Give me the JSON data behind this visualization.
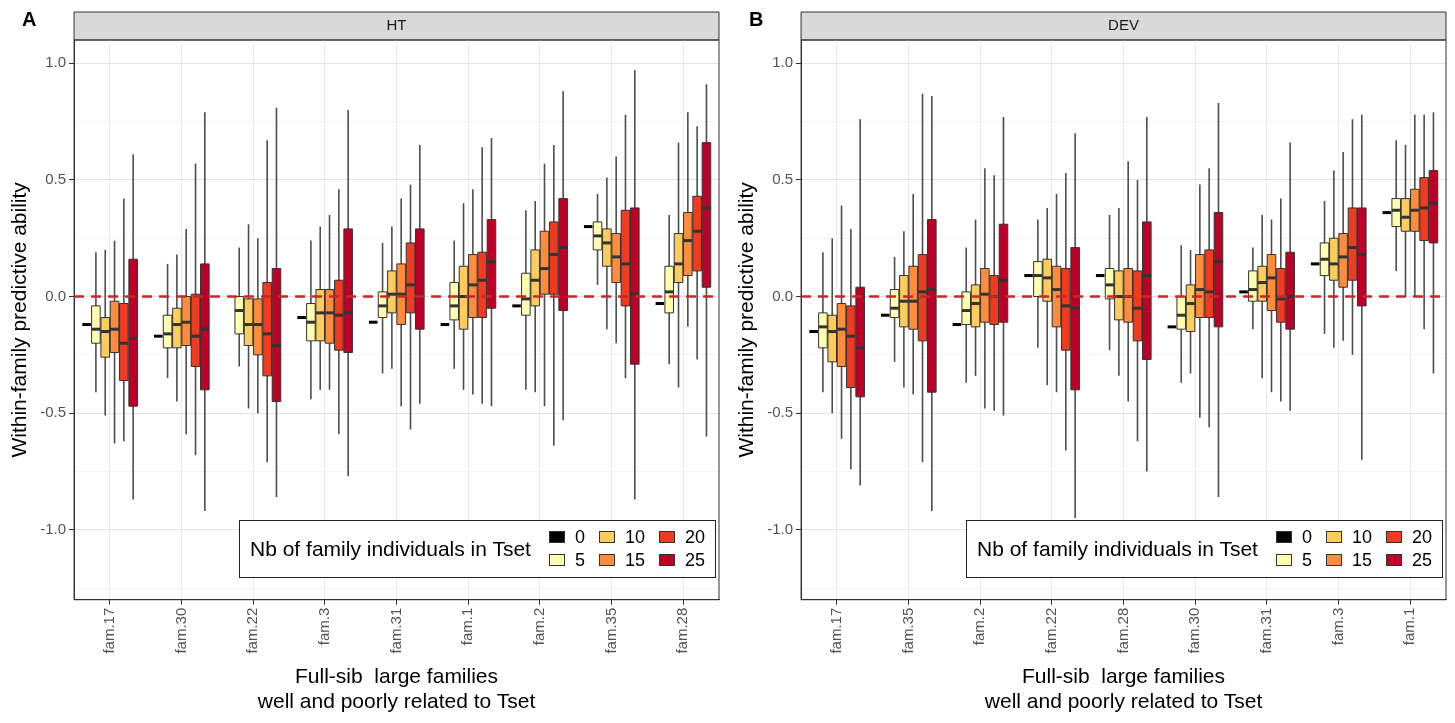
{
  "chart_data": [
    {
      "type": "box",
      "title": "HT",
      "annotations": [
        "A"
      ],
      "xlabel": "Full-sib  large families\nwell and poorly related to Tset",
      "ylabel": "Within-family predictive ability",
      "legend_title": "Nb of family individuals in Tset",
      "legend": "bottom right",
      "grid": true,
      "categories": [
        "fam.17",
        "fam.30",
        "fam.22",
        "fam.3",
        "fam.31",
        "fam.1",
        "fam.2",
        "fam.35",
        "fam.28"
      ],
      "ylim": [
        -1.3,
        1.1
      ],
      "yticks": [
        {
          "value": -1.25,
          "label": null
        },
        {
          "value": -1,
          "label": "-1.0"
        },
        {
          "value": -0.75,
          "label": null
        },
        {
          "value": -0.5,
          "label": "-0.5"
        },
        {
          "value": -0.25,
          "label": null
        },
        {
          "value": 0,
          "label": "0.0"
        },
        {
          "value": 0.25,
          "label": null
        },
        {
          "value": 0.5,
          "label": "0.5"
        },
        {
          "value": 0.75,
          "label": null
        },
        {
          "value": 1,
          "label": "1.0"
        }
      ],
      "ref_lines": [
        {
          "axis": "y",
          "value": 0,
          "color": "#c62828",
          "line_style": "dashed"
        }
      ],
      "series": [
        {
          "name": "0",
          "color": "#000000",
          "boxes": [
            {
              "low": -0.12,
              "q1": -0.12,
              "median": -0.12,
              "q3": -0.12,
              "high": -0.12
            },
            {
              "low": -0.17,
              "q1": -0.17,
              "median": -0.17,
              "q3": -0.17,
              "high": -0.17
            },
            null,
            {
              "low": -0.09,
              "q1": -0.09,
              "median": -0.09,
              "q3": -0.09,
              "high": -0.09
            },
            {
              "low": -0.11,
              "q1": -0.11,
              "median": -0.11,
              "q3": -0.11,
              "high": -0.11
            },
            {
              "low": -0.12,
              "q1": -0.12,
              "median": -0.12,
              "q3": -0.12,
              "high": -0.12
            },
            {
              "low": -0.04,
              "q1": -0.04,
              "median": -0.04,
              "q3": -0.04,
              "high": -0.04
            },
            {
              "low": 0.3,
              "q1": 0.3,
              "median": 0.3,
              "q3": 0.3,
              "high": 0.3
            },
            {
              "low": -0.03,
              "q1": -0.03,
              "median": -0.03,
              "q3": -0.03,
              "high": -0.03
            }
          ]
        },
        {
          "name": "5",
          "color": "#ffffb2",
          "boxes": [
            {
              "low": -0.41,
              "q1": -0.2,
              "median": -0.14,
              "q3": -0.04,
              "high": 0.19
            },
            {
              "low": -0.35,
              "q1": -0.22,
              "median": -0.16,
              "q3": -0.08,
              "high": 0.14
            },
            {
              "low": -0.3,
              "q1": -0.16,
              "median": -0.06,
              "q3": 0,
              "high": 0.21
            },
            {
              "low": -0.44,
              "q1": -0.19,
              "median": -0.11,
              "q3": -0.03,
              "high": 0.24
            },
            {
              "low": -0.33,
              "q1": -0.09,
              "median": -0.04,
              "q3": 0.02,
              "high": 0.23
            },
            {
              "low": -0.31,
              "q1": -0.1,
              "median": -0.04,
              "q3": 0.06,
              "high": 0.24
            },
            {
              "low": -0.4,
              "q1": -0.08,
              "median": -0.01,
              "q3": 0.1,
              "high": 0.37
            },
            {
              "low": 0.05,
              "q1": 0.2,
              "median": 0.26,
              "q3": 0.32,
              "high": 0.44
            },
            {
              "low": -0.29,
              "q1": -0.07,
              "median": 0.02,
              "q3": 0.13,
              "high": 0.35
            }
          ]
        },
        {
          "name": "10",
          "color": "#fecc5c",
          "boxes": [
            {
              "low": -0.51,
              "q1": -0.26,
              "median": -0.15,
              "q3": -0.09,
              "high": 0.2
            },
            {
              "low": -0.45,
              "q1": -0.22,
              "median": -0.12,
              "q3": -0.05,
              "high": 0.18
            },
            {
              "low": -0.48,
              "q1": -0.21,
              "median": -0.12,
              "q3": -0.01,
              "high": 0.31
            },
            {
              "low": -0.4,
              "q1": -0.19,
              "median": -0.07,
              "q3": 0.03,
              "high": 0.3
            },
            {
              "low": -0.31,
              "q1": -0.07,
              "median": 0.01,
              "q3": 0.11,
              "high": 0.3
            },
            {
              "low": -0.4,
              "q1": -0.14,
              "median": 0,
              "q3": 0.13,
              "high": 0.4
            },
            {
              "low": -0.41,
              "q1": -0.04,
              "median": 0.07,
              "q3": 0.2,
              "high": 0.41
            },
            {
              "low": -0.14,
              "q1": 0.13,
              "median": 0.23,
              "q3": 0.29,
              "high": 0.51
            },
            {
              "low": -0.39,
              "q1": 0.06,
              "median": 0.14,
              "q3": 0.27,
              "high": 0.66
            }
          ]
        },
        {
          "name": "15",
          "color": "#fd8d3c",
          "boxes": [
            {
              "low": -0.63,
              "q1": -0.24,
              "median": -0.14,
              "q3": -0.02,
              "high": 0.24
            },
            {
              "low": -0.59,
              "q1": -0.21,
              "median": -0.11,
              "q3": 0,
              "high": 0.29
            },
            {
              "low": -0.5,
              "q1": -0.25,
              "median": -0.12,
              "q3": -0.01,
              "high": 0.25
            },
            {
              "low": -0.4,
              "q1": -0.2,
              "median": -0.07,
              "q3": 0.03,
              "high": 0.35
            },
            {
              "low": -0.47,
              "q1": -0.12,
              "median": 0.01,
              "q3": 0.14,
              "high": 0.42
            },
            {
              "low": -0.42,
              "q1": -0.09,
              "median": 0.05,
              "q3": 0.18,
              "high": 0.46
            },
            {
              "low": -0.47,
              "q1": 0.01,
              "median": 0.12,
              "q3": 0.28,
              "high": 0.57
            },
            {
              "low": -0.2,
              "q1": 0.06,
              "median": 0.17,
              "q3": 0.27,
              "high": 0.6
            },
            {
              "low": -0.13,
              "q1": 0.09,
              "median": 0.24,
              "q3": 0.36,
              "high": 0.79
            }
          ]
        },
        {
          "name": "20",
          "color": "#f03b20",
          "boxes": [
            {
              "low": -0.62,
              "q1": -0.36,
              "median": -0.2,
              "q3": -0.03,
              "high": 0.42
            },
            {
              "low": -0.68,
              "q1": -0.3,
              "median": -0.17,
              "q3": 0.01,
              "high": 0.57
            },
            {
              "low": -0.71,
              "q1": -0.34,
              "median": -0.16,
              "q3": 0.06,
              "high": 0.67
            },
            {
              "low": -0.59,
              "q1": -0.23,
              "median": -0.08,
              "q3": 0.07,
              "high": 0.46
            },
            {
              "low": -0.57,
              "q1": -0.07,
              "median": 0.05,
              "q3": 0.23,
              "high": 0.48
            },
            {
              "low": -0.46,
              "q1": -0.09,
              "median": 0.07,
              "q3": 0.19,
              "high": 0.64
            },
            {
              "low": -0.64,
              "q1": 0.01,
              "median": 0.18,
              "q3": 0.32,
              "high": 0.65
            },
            {
              "low": -0.35,
              "q1": -0.04,
              "median": 0.14,
              "q3": 0.37,
              "high": 0.78
            },
            {
              "low": -0.27,
              "q1": 0.11,
              "median": 0.28,
              "q3": 0.43,
              "high": 0.73
            }
          ]
        },
        {
          "name": "25",
          "color": "#bd0026",
          "boxes": [
            {
              "low": -0.87,
              "q1": -0.47,
              "median": -0.18,
              "q3": 0.16,
              "high": 0.61
            },
            {
              "low": -0.92,
              "q1": -0.4,
              "median": -0.14,
              "q3": 0.14,
              "high": 0.79
            },
            {
              "low": -0.86,
              "q1": -0.45,
              "median": -0.21,
              "q3": 0.12,
              "high": 0.81
            },
            {
              "low": -0.77,
              "q1": -0.24,
              "median": -0.07,
              "q3": 0.29,
              "high": 0.8
            },
            {
              "low": -0.46,
              "q1": -0.14,
              "median": 0,
              "q3": 0.29,
              "high": 0.65
            },
            {
              "low": -0.47,
              "q1": -0.05,
              "median": 0.15,
              "q3": 0.33,
              "high": 0.68
            },
            {
              "low": -0.53,
              "q1": -0.06,
              "median": 0.21,
              "q3": 0.42,
              "high": 0.88
            },
            {
              "low": -0.87,
              "q1": -0.29,
              "median": 0.01,
              "q3": 0.38,
              "high": 0.97
            },
            {
              "low": -0.6,
              "q1": 0.04,
              "median": 0.38,
              "q3": 0.66,
              "high": 0.91
            }
          ]
        }
      ]
    },
    {
      "type": "box",
      "title": "DEV",
      "annotations": [
        "B"
      ],
      "xlabel": "Full-sib  large families\nwell and poorly related to Tset",
      "ylabel": "Within-family predictive ability",
      "legend_title": "Nb of family individuals in Tset",
      "legend": "bottom right",
      "grid": true,
      "categories": [
        "fam.17",
        "fam.35",
        "fam.2",
        "fam.22",
        "fam.28",
        "fam.30",
        "fam.31",
        "fam.3",
        "fam.1"
      ],
      "ylim": [
        -1.3,
        1.1
      ],
      "yticks": [
        {
          "value": -1.25,
          "label": null
        },
        {
          "value": -1,
          "label": "-1.0"
        },
        {
          "value": -0.75,
          "label": null
        },
        {
          "value": -0.5,
          "label": "-0.5"
        },
        {
          "value": -0.25,
          "label": null
        },
        {
          "value": 0,
          "label": "0.0"
        },
        {
          "value": 0.25,
          "label": null
        },
        {
          "value": 0.5,
          "label": "0.5"
        },
        {
          "value": 0.75,
          "label": null
        },
        {
          "value": 1,
          "label": "1.0"
        }
      ],
      "ref_lines": [
        {
          "axis": "y",
          "value": 0,
          "color": "#c62828",
          "line_style": "dashed"
        }
      ],
      "series": [
        {
          "name": "0",
          "color": "#000000",
          "boxes": [
            {
              "low": -0.15,
              "q1": -0.15,
              "median": -0.15,
              "q3": -0.15,
              "high": -0.15
            },
            {
              "low": -0.08,
              "q1": -0.08,
              "median": -0.08,
              "q3": -0.08,
              "high": -0.08
            },
            {
              "low": -0.12,
              "q1": -0.12,
              "median": -0.12,
              "q3": -0.12,
              "high": -0.12
            },
            {
              "low": 0.09,
              "q1": 0.09,
              "median": 0.09,
              "q3": 0.09,
              "high": 0.09
            },
            {
              "low": 0.09,
              "q1": 0.09,
              "median": 0.09,
              "q3": 0.09,
              "high": 0.09
            },
            {
              "low": -0.13,
              "q1": -0.13,
              "median": -0.13,
              "q3": -0.13,
              "high": -0.13
            },
            {
              "low": 0.02,
              "q1": 0.02,
              "median": 0.02,
              "q3": 0.02,
              "high": 0.02
            },
            {
              "low": 0.14,
              "q1": 0.14,
              "median": 0.14,
              "q3": 0.14,
              "high": 0.14
            },
            {
              "low": 0.36,
              "q1": 0.36,
              "median": 0.36,
              "q3": 0.36,
              "high": 0.36
            }
          ]
        },
        {
          "name": "5",
          "color": "#ffffb2",
          "boxes": [
            {
              "low": -0.41,
              "q1": -0.22,
              "median": -0.13,
              "q3": -0.07,
              "high": 0.19
            },
            {
              "low": -0.28,
              "q1": -0.09,
              "median": -0.05,
              "q3": 0.03,
              "high": 0.17
            },
            {
              "low": -0.37,
              "q1": -0.12,
              "median": -0.06,
              "q3": 0.02,
              "high": 0.21
            },
            {
              "low": -0.22,
              "q1": 0,
              "median": 0.09,
              "q3": 0.15,
              "high": 0.33
            },
            {
              "low": -0.23,
              "q1": -0.01,
              "median": 0.05,
              "q3": 0.12,
              "high": 0.35
            },
            {
              "low": -0.37,
              "q1": -0.14,
              "median": -0.08,
              "q3": 0,
              "high": 0.22
            },
            {
              "low": -0.14,
              "q1": -0.02,
              "median": 0.03,
              "q3": 0.11,
              "high": 0.21
            },
            {
              "low": -0.16,
              "q1": 0.09,
              "median": 0.16,
              "q3": 0.23,
              "high": 0.41
            },
            {
              "low": 0.11,
              "q1": 0.3,
              "median": 0.37,
              "q3": 0.42,
              "high": 0.67
            }
          ]
        },
        {
          "name": "10",
          "color": "#fecc5c",
          "boxes": [
            {
              "low": -0.5,
              "q1": -0.28,
              "median": -0.15,
              "q3": -0.08,
              "high": 0.25
            },
            {
              "low": -0.39,
              "q1": -0.13,
              "median": -0.02,
              "q3": 0.09,
              "high": 0.28
            },
            {
              "low": -0.34,
              "q1": -0.13,
              "median": -0.03,
              "q3": 0.05,
              "high": 0.33
            },
            {
              "low": -0.38,
              "q1": -0.02,
              "median": 0.08,
              "q3": 0.16,
              "high": 0.38
            },
            {
              "low": -0.34,
              "q1": -0.1,
              "median": 0,
              "q3": 0.11,
              "high": 0.38
            },
            {
              "low": -0.33,
              "q1": -0.15,
              "median": -0.03,
              "q3": 0.05,
              "high": 0.2
            },
            {
              "low": -0.35,
              "q1": -0.02,
              "median": 0.06,
              "q3": 0.13,
              "high": 0.35
            },
            {
              "low": -0.22,
              "q1": 0.07,
              "median": 0.14,
              "q3": 0.25,
              "high": 0.54
            },
            {
              "low": 0,
              "q1": 0.28,
              "median": 0.34,
              "q3": 0.42,
              "high": 0.65
            }
          ]
        },
        {
          "name": "15",
          "color": "#fd8d3c",
          "boxes": [
            {
              "low": -0.61,
              "q1": -0.3,
              "median": -0.14,
              "q3": -0.03,
              "high": 0.39
            },
            {
              "low": -0.42,
              "q1": -0.14,
              "median": -0.02,
              "q3": 0.13,
              "high": 0.44
            },
            {
              "low": -0.48,
              "q1": -0.11,
              "median": 0.01,
              "q3": 0.12,
              "high": 0.55
            },
            {
              "low": -0.41,
              "q1": -0.13,
              "median": 0.03,
              "q3": 0.13,
              "high": 0.44
            },
            {
              "low": -0.45,
              "q1": -0.11,
              "median": 0,
              "q3": 0.12,
              "high": 0.58
            },
            {
              "low": -0.52,
              "q1": -0.09,
              "median": 0.03,
              "q3": 0.18,
              "high": 0.48
            },
            {
              "low": -0.41,
              "q1": -0.06,
              "median": 0.08,
              "q3": 0.18,
              "high": 0.33
            },
            {
              "low": -0.19,
              "q1": 0.04,
              "median": 0.17,
              "q3": 0.27,
              "high": 0.62
            },
            {
              "low": 0,
              "q1": 0.28,
              "median": 0.37,
              "q3": 0.46,
              "high": 0.78
            }
          ]
        },
        {
          "name": "20",
          "color": "#f03b20",
          "boxes": [
            {
              "low": -0.74,
              "q1": -0.39,
              "median": -0.17,
              "q3": -0.04,
              "high": 0.29
            },
            {
              "low": -0.71,
              "q1": -0.19,
              "median": 0.02,
              "q3": 0.18,
              "high": 0.87
            },
            {
              "low": -0.49,
              "q1": -0.12,
              "median": 0,
              "q3": 0.09,
              "high": 0.52
            },
            {
              "low": -0.66,
              "q1": -0.23,
              "median": -0.04,
              "q3": 0.12,
              "high": 0.53
            },
            {
              "low": -0.62,
              "q1": -0.19,
              "median": -0.05,
              "q3": 0.11,
              "high": 0.5
            },
            {
              "low": -0.56,
              "q1": -0.09,
              "median": 0.02,
              "q3": 0.2,
              "high": 0.55
            },
            {
              "low": -0.45,
              "q1": -0.11,
              "median": -0.01,
              "q3": 0.12,
              "high": 0.42
            },
            {
              "low": -0.25,
              "q1": 0.07,
              "median": 0.21,
              "q3": 0.38,
              "high": 0.76
            },
            {
              "low": -0.14,
              "q1": 0.24,
              "median": 0.38,
              "q3": 0.51,
              "high": 0.78
            }
          ]
        },
        {
          "name": "25",
          "color": "#bd0026",
          "boxes": [
            {
              "low": -0.81,
              "q1": -0.43,
              "median": -0.22,
              "q3": 0.04,
              "high": 0.76
            },
            {
              "low": -0.92,
              "q1": -0.41,
              "median": 0.03,
              "q3": 0.33,
              "high": 0.86
            },
            {
              "low": -0.51,
              "q1": -0.11,
              "median": 0.07,
              "q3": 0.31,
              "high": 0.77
            },
            {
              "low": -0.95,
              "q1": -0.4,
              "median": -0.05,
              "q3": 0.21,
              "high": 0.7
            },
            {
              "low": -0.75,
              "q1": -0.27,
              "median": 0.09,
              "q3": 0.32,
              "high": 0.77
            },
            {
              "low": -0.86,
              "q1": -0.13,
              "median": 0.15,
              "q3": 0.36,
              "high": 0.83
            },
            {
              "low": -0.49,
              "q1": -0.14,
              "median": 0,
              "q3": 0.19,
              "high": 0.66
            },
            {
              "low": -0.7,
              "q1": -0.04,
              "median": 0.18,
              "q3": 0.38,
              "high": 0.78
            },
            {
              "low": -0.33,
              "q1": 0.23,
              "median": 0.4,
              "q3": 0.54,
              "high": 0.79
            }
          ]
        }
      ]
    }
  ]
}
